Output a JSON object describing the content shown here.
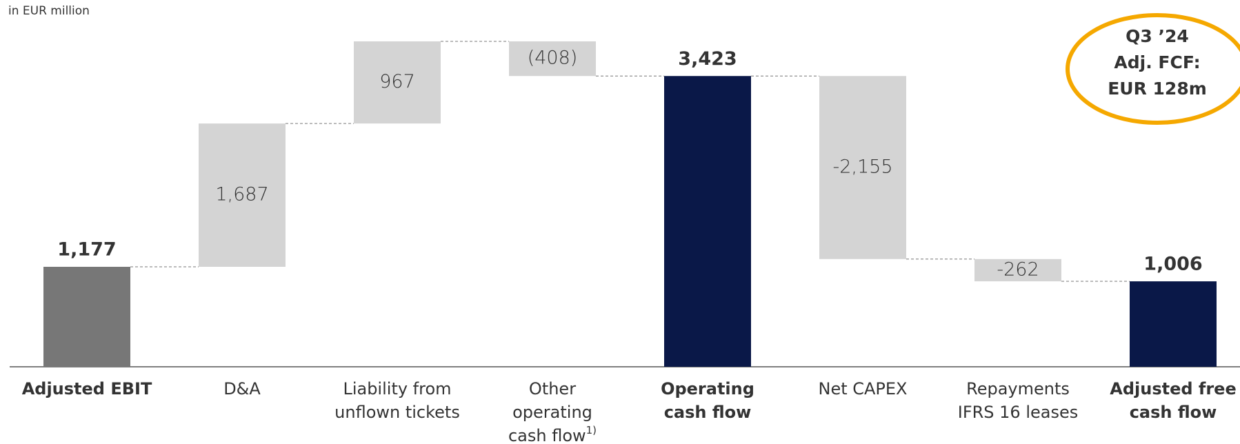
{
  "chart_data": {
    "type": "waterfall",
    "subtitle": "in EUR million",
    "categories": [
      [
        "Adjusted EBIT"
      ],
      [
        "D&A"
      ],
      [
        "Liability from",
        "unflown tickets"
      ],
      [
        "Other",
        "operating",
        "cash flow"
      ],
      [
        "Operating",
        "cash flow"
      ],
      [
        "Net CAPEX"
      ],
      [
        "Repayments",
        "IFRS 16 leases"
      ],
      [
        "Adjusted free",
        "cash flow"
      ]
    ],
    "category_notes": [
      null,
      null,
      null,
      "1)",
      null,
      null,
      null,
      null
    ],
    "values": [
      1177,
      1687,
      967,
      -408,
      3423,
      -2155,
      -262,
      1006
    ],
    "value_labels": [
      "1,177",
      "1,687",
      "967",
      "(408)",
      "3,423",
      "-2,155",
      "-262",
      "1,006"
    ],
    "colors": [
      "#777777",
      "#d4d4d4",
      "#d4d4d4",
      "#d4d4d4",
      "#0a1848",
      "#d4d4d4",
      "#d4d4d4",
      "#0a1848"
    ],
    "annotation": {
      "lines": [
        "Q3 ’24",
        "Adj. FCF:",
        "EUR 128m"
      ],
      "color": "#f5a800"
    }
  }
}
